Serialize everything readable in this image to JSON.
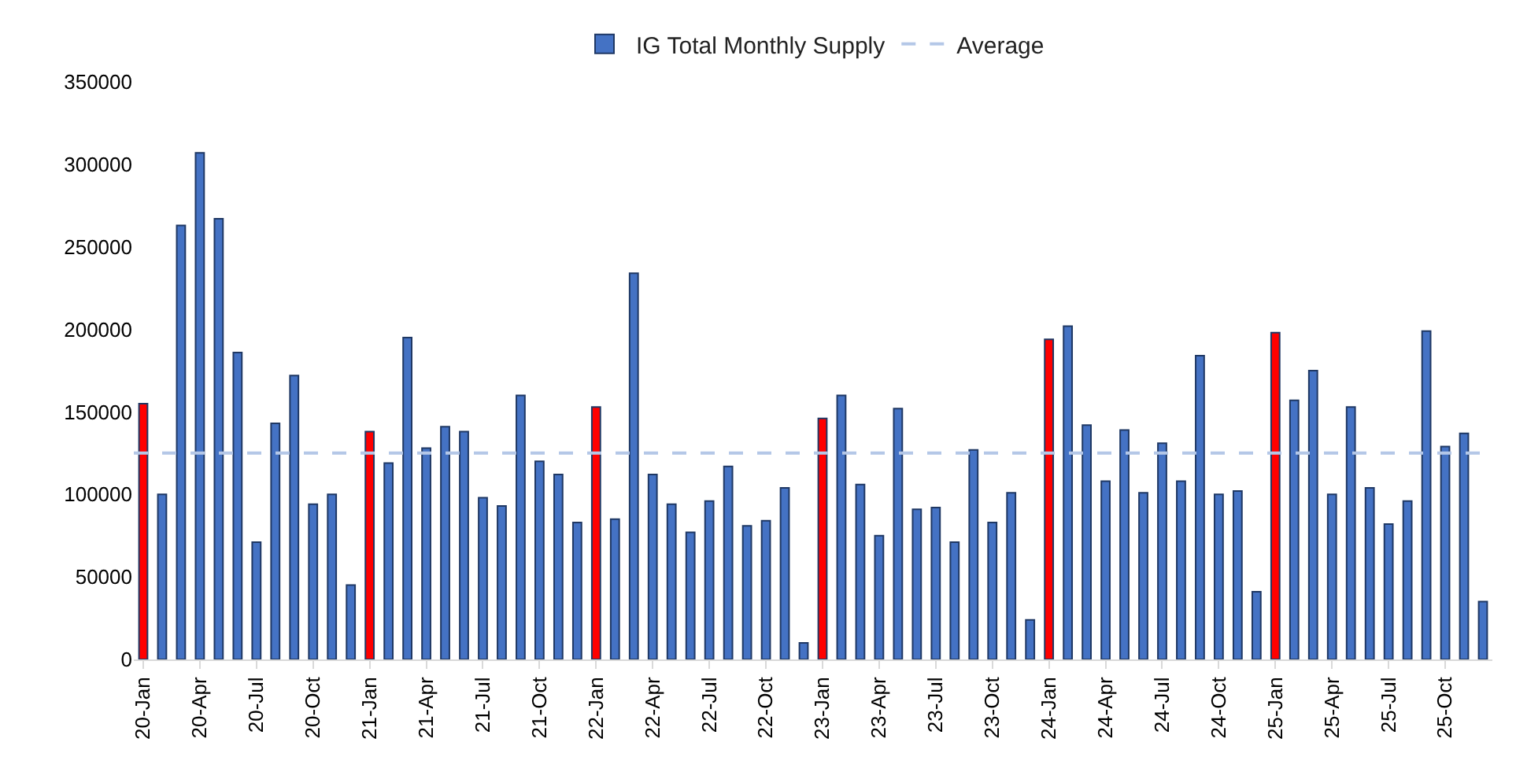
{
  "chart_data": {
    "type": "bar",
    "categories": [
      "20-Jan",
      null,
      null,
      "20-Apr",
      null,
      null,
      "20-Jul",
      null,
      null,
      "20-Oct",
      null,
      null,
      "21-Jan",
      null,
      null,
      "21-Apr",
      null,
      null,
      "21-Jul",
      null,
      null,
      "21-Oct",
      null,
      null,
      "22-Jan",
      null,
      null,
      "22-Apr",
      null,
      null,
      "22-Jul",
      null,
      null,
      "22-Oct",
      null,
      null,
      "23-Jan",
      null,
      null,
      "23-Apr",
      null,
      null,
      "23-Jul",
      null,
      null,
      "23-Oct",
      null,
      null,
      "24-Jan",
      null,
      null,
      "24-Apr",
      null,
      null,
      "24-Jul",
      null,
      null,
      "24-Oct",
      null,
      null,
      "25-Jan",
      null,
      null,
      "25-Apr",
      null,
      null,
      "25-Jul",
      null,
      null,
      "25-Oct",
      null,
      null
    ],
    "series": [
      {
        "name": "IG Total Monthly Supply",
        "color": "#4472c4",
        "colors": [
          "#ff0000",
          "#4472c4",
          "#4472c4",
          "#4472c4",
          "#4472c4",
          "#4472c4",
          "#4472c4",
          "#4472c4",
          "#4472c4",
          "#4472c4",
          "#4472c4",
          "#4472c4",
          "#ff0000",
          "#4472c4",
          "#4472c4",
          "#4472c4",
          "#4472c4",
          "#4472c4",
          "#4472c4",
          "#4472c4",
          "#4472c4",
          "#4472c4",
          "#4472c4",
          "#4472c4",
          "#ff0000",
          "#4472c4",
          "#4472c4",
          "#4472c4",
          "#4472c4",
          "#4472c4",
          "#4472c4",
          "#4472c4",
          "#4472c4",
          "#4472c4",
          "#4472c4",
          "#4472c4",
          "#ff0000",
          "#4472c4",
          "#4472c4",
          "#4472c4",
          "#4472c4",
          "#4472c4",
          "#4472c4",
          "#4472c4",
          "#4472c4",
          "#4472c4",
          "#4472c4",
          "#4472c4",
          "#ff0000",
          "#4472c4",
          "#4472c4",
          "#4472c4",
          "#4472c4",
          "#4472c4",
          "#4472c4",
          "#4472c4",
          "#4472c4",
          "#4472c4",
          "#4472c4",
          "#4472c4",
          "#ff0000",
          "#4472c4",
          "#4472c4",
          "#4472c4",
          "#4472c4",
          "#4472c4",
          "#4472c4",
          "#4472c4",
          "#4472c4",
          "#4472c4",
          "#4472c4",
          "#4472c4"
        ],
        "values": [
          155000,
          100000,
          263000,
          307000,
          267000,
          186000,
          71000,
          143000,
          172000,
          94000,
          100000,
          45000,
          138000,
          119000,
          195000,
          128000,
          141000,
          138000,
          98000,
          93000,
          160000,
          120000,
          112000,
          83000,
          153000,
          85000,
          234000,
          112000,
          94000,
          77000,
          96000,
          117000,
          81000,
          84000,
          104000,
          10000,
          146000,
          160000,
          106000,
          75000,
          152000,
          91000,
          92000,
          71000,
          127000,
          83000,
          101000,
          24000,
          194000,
          202000,
          142000,
          108000,
          139000,
          101000,
          131000,
          108000,
          184000,
          100000,
          102000,
          41000,
          198000,
          157000,
          175000,
          100000,
          153000,
          104000,
          82000,
          96000,
          199000,
          129000,
          137000,
          35000
        ]
      }
    ],
    "ref_lines": [
      {
        "axis": "y",
        "value": 125000,
        "label": "Average",
        "color": "#b4c7e7",
        "line_style": "dashed"
      }
    ],
    "ylim": [
      0,
      350000
    ],
    "yticks": [
      0,
      50000,
      100000,
      150000,
      200000,
      250000,
      300000,
      350000
    ],
    "grid": false,
    "legend": "top"
  }
}
